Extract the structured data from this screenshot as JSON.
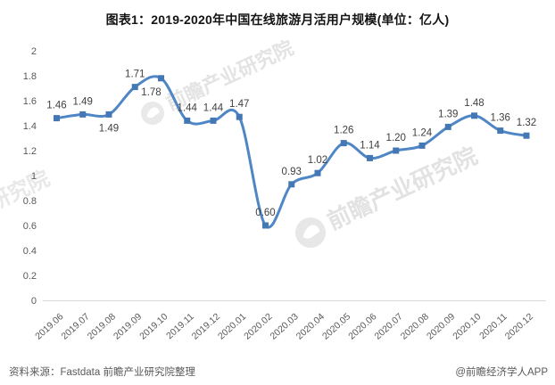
{
  "title": "图表1：2019-2020年中国在线旅游月活用户规模(单位：亿人)",
  "footer": {
    "source": "资料来源：Fastdata 前瞻产业研究院整理",
    "credit": "@前瞻经济学人APP"
  },
  "watermark": {
    "text": "前瞻产业研究院",
    "logo": "qianzhan-logo"
  },
  "chart_data": {
    "type": "line",
    "title": "图表1：2019-2020年中国在线旅游月活用户规模(单位：亿人)",
    "unit": "亿人",
    "categories": [
      "2019.06",
      "2019.07",
      "2019.08",
      "2019.09",
      "2019.10",
      "2019.11",
      "2019.12",
      "2020.01",
      "2020.02",
      "2020.03",
      "2020.04",
      "2020.05",
      "2020.06",
      "2020.07",
      "2020.08",
      "2020.09",
      "2020.10",
      "2020.11",
      "2020.12"
    ],
    "values": [
      1.46,
      1.49,
      1.49,
      1.71,
      1.78,
      1.44,
      1.44,
      1.47,
      0.6,
      0.93,
      1.02,
      1.26,
      1.14,
      1.2,
      1.24,
      1.39,
      1.48,
      1.36,
      1.32
    ],
    "point_labels": [
      "1.46",
      "1.49",
      "1.49",
      "1.71",
      "1.78",
      "1.44",
      "1.44",
      "1.47",
      "0.60",
      "0.93",
      "1.02",
      "1.26",
      "1.14",
      "1.20",
      "1.24",
      "1.39",
      "1.48",
      "1.36",
      "1.32"
    ],
    "label_positions": [
      "above",
      "above",
      "below",
      "above",
      "below-left",
      "above",
      "above",
      "above",
      "above",
      "above",
      "above",
      "above",
      "above",
      "above",
      "above",
      "above",
      "above",
      "above",
      "above"
    ],
    "xlabel": "",
    "ylabel": "",
    "ylim": [
      0,
      2
    ],
    "ytick_step": 0.2,
    "yticks": [
      "0",
      "0.2",
      "0.4",
      "0.6",
      "0.8",
      "1",
      "1.2",
      "1.4",
      "1.6",
      "1.8",
      "2"
    ],
    "grid": false,
    "legend": "none",
    "smooth": true,
    "line_color": "#4f86c6",
    "marker_color": "#4478b4",
    "marker_shape": "square",
    "axis_line_color": "#d9d9d9"
  }
}
